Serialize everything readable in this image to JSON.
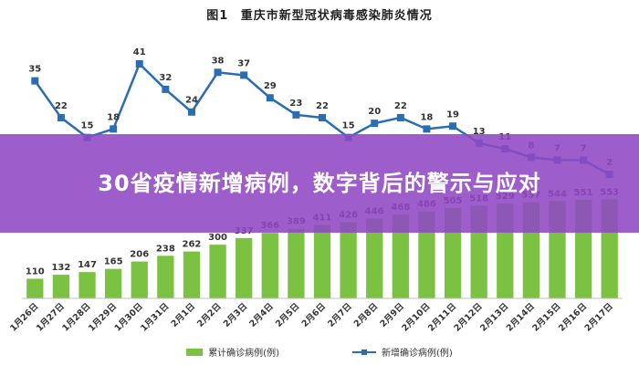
{
  "figure_label": "图1",
  "chart_title": "重庆市新型冠状病毒感染肺炎情况",
  "banner": {
    "text": "30省疫情新增病例，数字背后的警示与应对"
  },
  "legend": {
    "bar_label": "累计确诊病例(例)",
    "line_label": "新增确诊病例(例)"
  },
  "colors": {
    "bar": "#7cc242",
    "line": "#2a6db0",
    "banner": "#8f48c4"
  },
  "chart_data": {
    "type": "bar",
    "categories": [
      "1月26日",
      "1月27日",
      "1月28日",
      "1月29日",
      "1月30日",
      "1月31日",
      "2月1日",
      "2月2日",
      "2月3日",
      "2月4日",
      "2月5日",
      "2月6日",
      "2月7日",
      "2月8日",
      "2月9日",
      "2月10日",
      "2月11日",
      "2月12日",
      "2月13日",
      "2月14日",
      "2月15日",
      "2月16日",
      "2月17日"
    ],
    "series": [
      {
        "name": "累计确诊病例(例)",
        "type": "bar",
        "values": [
          110,
          132,
          147,
          165,
          206,
          238,
          262,
          300,
          337,
          366,
          389,
          411,
          426,
          446,
          468,
          486,
          505,
          518,
          529,
          537,
          544,
          551,
          553
        ]
      },
      {
        "name": "新增确诊病例(例)",
        "type": "line",
        "values": [
          35,
          22,
          15,
          18,
          41,
          32,
          24,
          38,
          37,
          29,
          23,
          22,
          15,
          20,
          22,
          18,
          19,
          13,
          11,
          8,
          7,
          7,
          2
        ]
      }
    ],
    "legend_position": "bottom",
    "grid": false
  }
}
